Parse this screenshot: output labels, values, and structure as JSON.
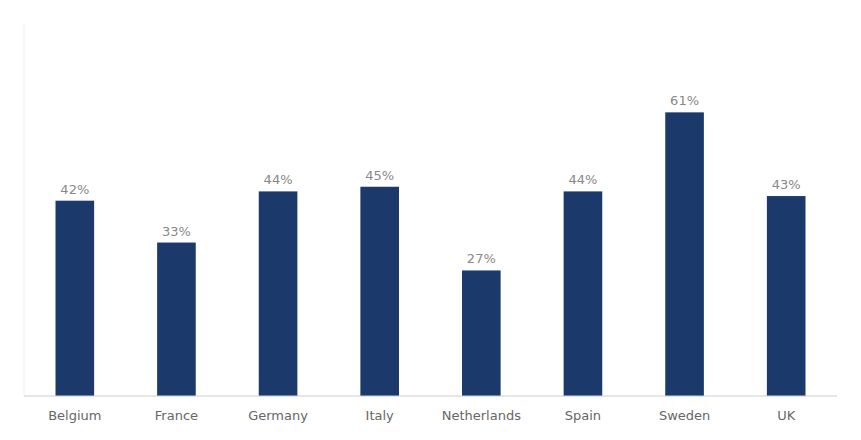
{
  "chart_data": {
    "type": "bar",
    "categories": [
      "Belgium",
      "France",
      "Germany",
      "Italy",
      "Netherlands",
      "Spain",
      "Sweden",
      "UK"
    ],
    "values": [
      42,
      33,
      44,
      45,
      27,
      44,
      61,
      43
    ],
    "value_labels": [
      "42%",
      "33%",
      "44%",
      "45%",
      "27%",
      "44%",
      "61%",
      "43%"
    ],
    "color": "#1b3a6b",
    "ylim": [
      0,
      80
    ],
    "data_labels": true,
    "tick_labels": "x",
    "grid": false
  }
}
